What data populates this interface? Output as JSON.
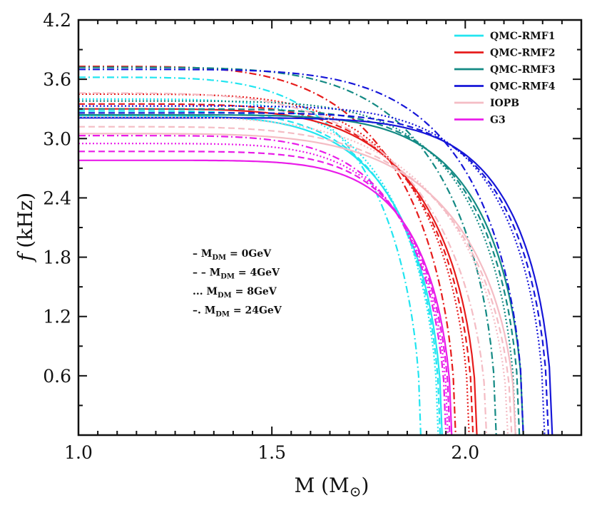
{
  "chart_data": {
    "type": "line",
    "title": "",
    "xlabel": "M (M",
    "xlabel_sub": "⊙",
    "xlabel_close": ")",
    "ylabel_italic": "f",
    "ylabel_unit": "(kHz)",
    "xlim": [
      1.0,
      2.3
    ],
    "ylim": [
      0.0,
      4.2
    ],
    "xticks": [
      1.0,
      1.5,
      2.0
    ],
    "xtick_labels": [
      "1.0",
      "1.5",
      "2.0"
    ],
    "yticks": [
      0.6,
      1.2,
      1.8,
      2.4,
      3.0,
      3.6,
      4.2
    ],
    "ytick_labels": [
      "0.6",
      "1.2",
      "1.8",
      "2.4",
      "3.0",
      "3.6",
      "4.2"
    ],
    "legend_position": "top-right",
    "legend": [
      {
        "name": "QMC-RMF1",
        "color": "#22e5f0"
      },
      {
        "name": "QMC-RMF2",
        "color": "#e61b1b"
      },
      {
        "name": "QMC-RMF3",
        "color": "#148a84"
      },
      {
        "name": "QMC-RMF4",
        "color": "#1616d8"
      },
      {
        "name": "IOPB",
        "color": "#f4bcc4"
      },
      {
        "name": "G3",
        "color": "#e91ce9"
      }
    ],
    "dm_styles": [
      {
        "symbol": "–",
        "label": "M",
        "sub": "DM",
        "value": " = 0GeV",
        "dash": "solid"
      },
      {
        "symbol": "– –",
        "label": "M",
        "sub": "DM",
        "value": " = 4GeV",
        "dash": "dashed"
      },
      {
        "symbol": "...",
        "label": "M",
        "sub": "DM",
        "value": " = 8GeV",
        "dash": "dotted"
      },
      {
        "symbol": "–.",
        "label": "M",
        "sub": "DM",
        "value": " = 24GeV",
        "dash": "dashdot"
      }
    ],
    "series": [
      {
        "name": "QMC-RMF1",
        "dm": 0,
        "color": "#22e5f0",
        "f0": 3.23,
        "mmax": 1.94,
        "p": 5.2
      },
      {
        "name": "QMC-RMF1",
        "dm": 4,
        "color": "#22e5f0",
        "f0": 3.28,
        "mmax": 1.935,
        "p": 5.1
      },
      {
        "name": "QMC-RMF1",
        "dm": 8,
        "color": "#22e5f0",
        "f0": 3.4,
        "mmax": 1.93,
        "p": 4.9
      },
      {
        "name": "QMC-RMF1",
        "dm": 24,
        "color": "#22e5f0",
        "f0": 3.62,
        "mmax": 1.885,
        "p": 4.4
      },
      {
        "name": "QMC-RMF2",
        "dm": 0,
        "color": "#e61b1b",
        "f0": 3.3,
        "mmax": 2.03,
        "p": 5.0
      },
      {
        "name": "QMC-RMF2",
        "dm": 4,
        "color": "#e61b1b",
        "f0": 3.35,
        "mmax": 2.02,
        "p": 4.9
      },
      {
        "name": "QMC-RMF2",
        "dm": 8,
        "color": "#e61b1b",
        "f0": 3.45,
        "mmax": 2.01,
        "p": 4.7
      },
      {
        "name": "QMC-RMF2",
        "dm": 24,
        "color": "#e61b1b",
        "f0": 3.73,
        "mmax": 1.975,
        "p": 4.2
      },
      {
        "name": "QMC-RMF3",
        "dm": 0,
        "color": "#148a84",
        "f0": 3.24,
        "mmax": 2.15,
        "p": 6.5
      },
      {
        "name": "QMC-RMF3",
        "dm": 4,
        "color": "#148a84",
        "f0": 3.3,
        "mmax": 2.14,
        "p": 6.2
      },
      {
        "name": "QMC-RMF3",
        "dm": 8,
        "color": "#148a84",
        "f0": 3.38,
        "mmax": 2.13,
        "p": 5.8
      },
      {
        "name": "QMC-RMF3",
        "dm": 24,
        "color": "#148a84",
        "f0": 3.72,
        "mmax": 2.08,
        "p": 4.8
      },
      {
        "name": "QMC-RMF4",
        "dm": 0,
        "color": "#1616d8",
        "f0": 3.21,
        "mmax": 2.225,
        "p": 7.5
      },
      {
        "name": "QMC-RMF4",
        "dm": 4,
        "color": "#1616d8",
        "f0": 3.26,
        "mmax": 2.215,
        "p": 7.1
      },
      {
        "name": "QMC-RMF4",
        "dm": 8,
        "color": "#1616d8",
        "f0": 3.33,
        "mmax": 2.205,
        "p": 6.7
      },
      {
        "name": "QMC-RMF4",
        "dm": 24,
        "color": "#1616d8",
        "f0": 3.7,
        "mmax": 2.15,
        "p": 5.3
      },
      {
        "name": "IOPB",
        "dm": 0,
        "color": "#f4bcc4",
        "f0": 3.05,
        "mmax": 2.13,
        "p": 4.7
      },
      {
        "name": "IOPB",
        "dm": 4,
        "color": "#f4bcc4",
        "f0": 3.12,
        "mmax": 2.12,
        "p": 4.5
      },
      {
        "name": "IOPB",
        "dm": 8,
        "color": "#f4bcc4",
        "f0": 3.22,
        "mmax": 2.11,
        "p": 4.3
      },
      {
        "name": "IOPB",
        "dm": 24,
        "color": "#f4bcc4",
        "f0": 3.46,
        "mmax": 2.055,
        "p": 3.9
      },
      {
        "name": "G3",
        "dm": 0,
        "color": "#e91ce9",
        "f0": 2.78,
        "mmax": 1.965,
        "p": 6.6
      },
      {
        "name": "G3",
        "dm": 4,
        "color": "#e91ce9",
        "f0": 2.87,
        "mmax": 1.96,
        "p": 6.2
      },
      {
        "name": "G3",
        "dm": 8,
        "color": "#e91ce9",
        "f0": 2.95,
        "mmax": 1.955,
        "p": 5.8
      },
      {
        "name": "G3",
        "dm": 24,
        "color": "#e91ce9",
        "f0": 3.03,
        "mmax": 1.95,
        "p": 5.5
      }
    ]
  }
}
